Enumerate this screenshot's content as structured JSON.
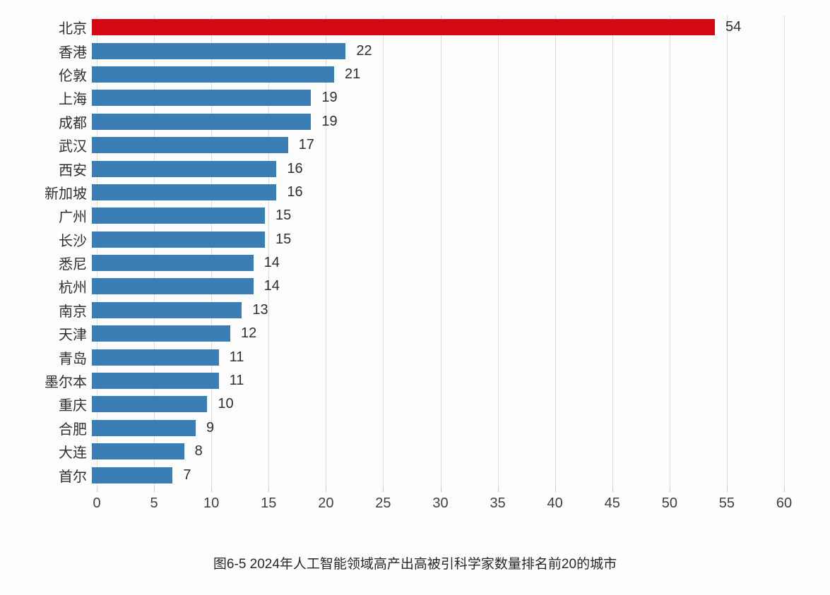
{
  "chart_data": {
    "type": "bar",
    "orientation": "horizontal",
    "categories": [
      "北京",
      "香港",
      "伦敦",
      "上海",
      "成都",
      "武汉",
      "西安",
      "新加坡",
      "广州",
      "长沙",
      "悉尼",
      "杭州",
      "南京",
      "天津",
      "青岛",
      "墨尔本",
      "重庆",
      "合肥",
      "大连",
      "首尔"
    ],
    "values": [
      54,
      22,
      21,
      19,
      19,
      17,
      16,
      16,
      15,
      15,
      14,
      14,
      13,
      12,
      11,
      11,
      10,
      9,
      8,
      7
    ],
    "highlight_index": 0,
    "bar_color": "#3b7db5",
    "highlight_color": "#d60813",
    "xlim": [
      0,
      60
    ],
    "x_ticks": [
      0,
      5,
      10,
      15,
      20,
      25,
      30,
      35,
      40,
      45,
      50,
      55,
      60
    ],
    "grid": true,
    "legend": false,
    "value_labels": true,
    "title": "",
    "xlabel": "",
    "ylabel": "",
    "caption": "图6-5 2024年人工智能领域高产出高被引科学家数量排名前20的城市"
  },
  "colors": {
    "background": "#fdfdfd",
    "gridline": "#dcdcdc",
    "tick": "#c8c8c8",
    "category_text": "#2f2f2f",
    "value_text": "#2e2e2e",
    "axis_text": "#3f3f3f",
    "caption_text": "#262626"
  }
}
